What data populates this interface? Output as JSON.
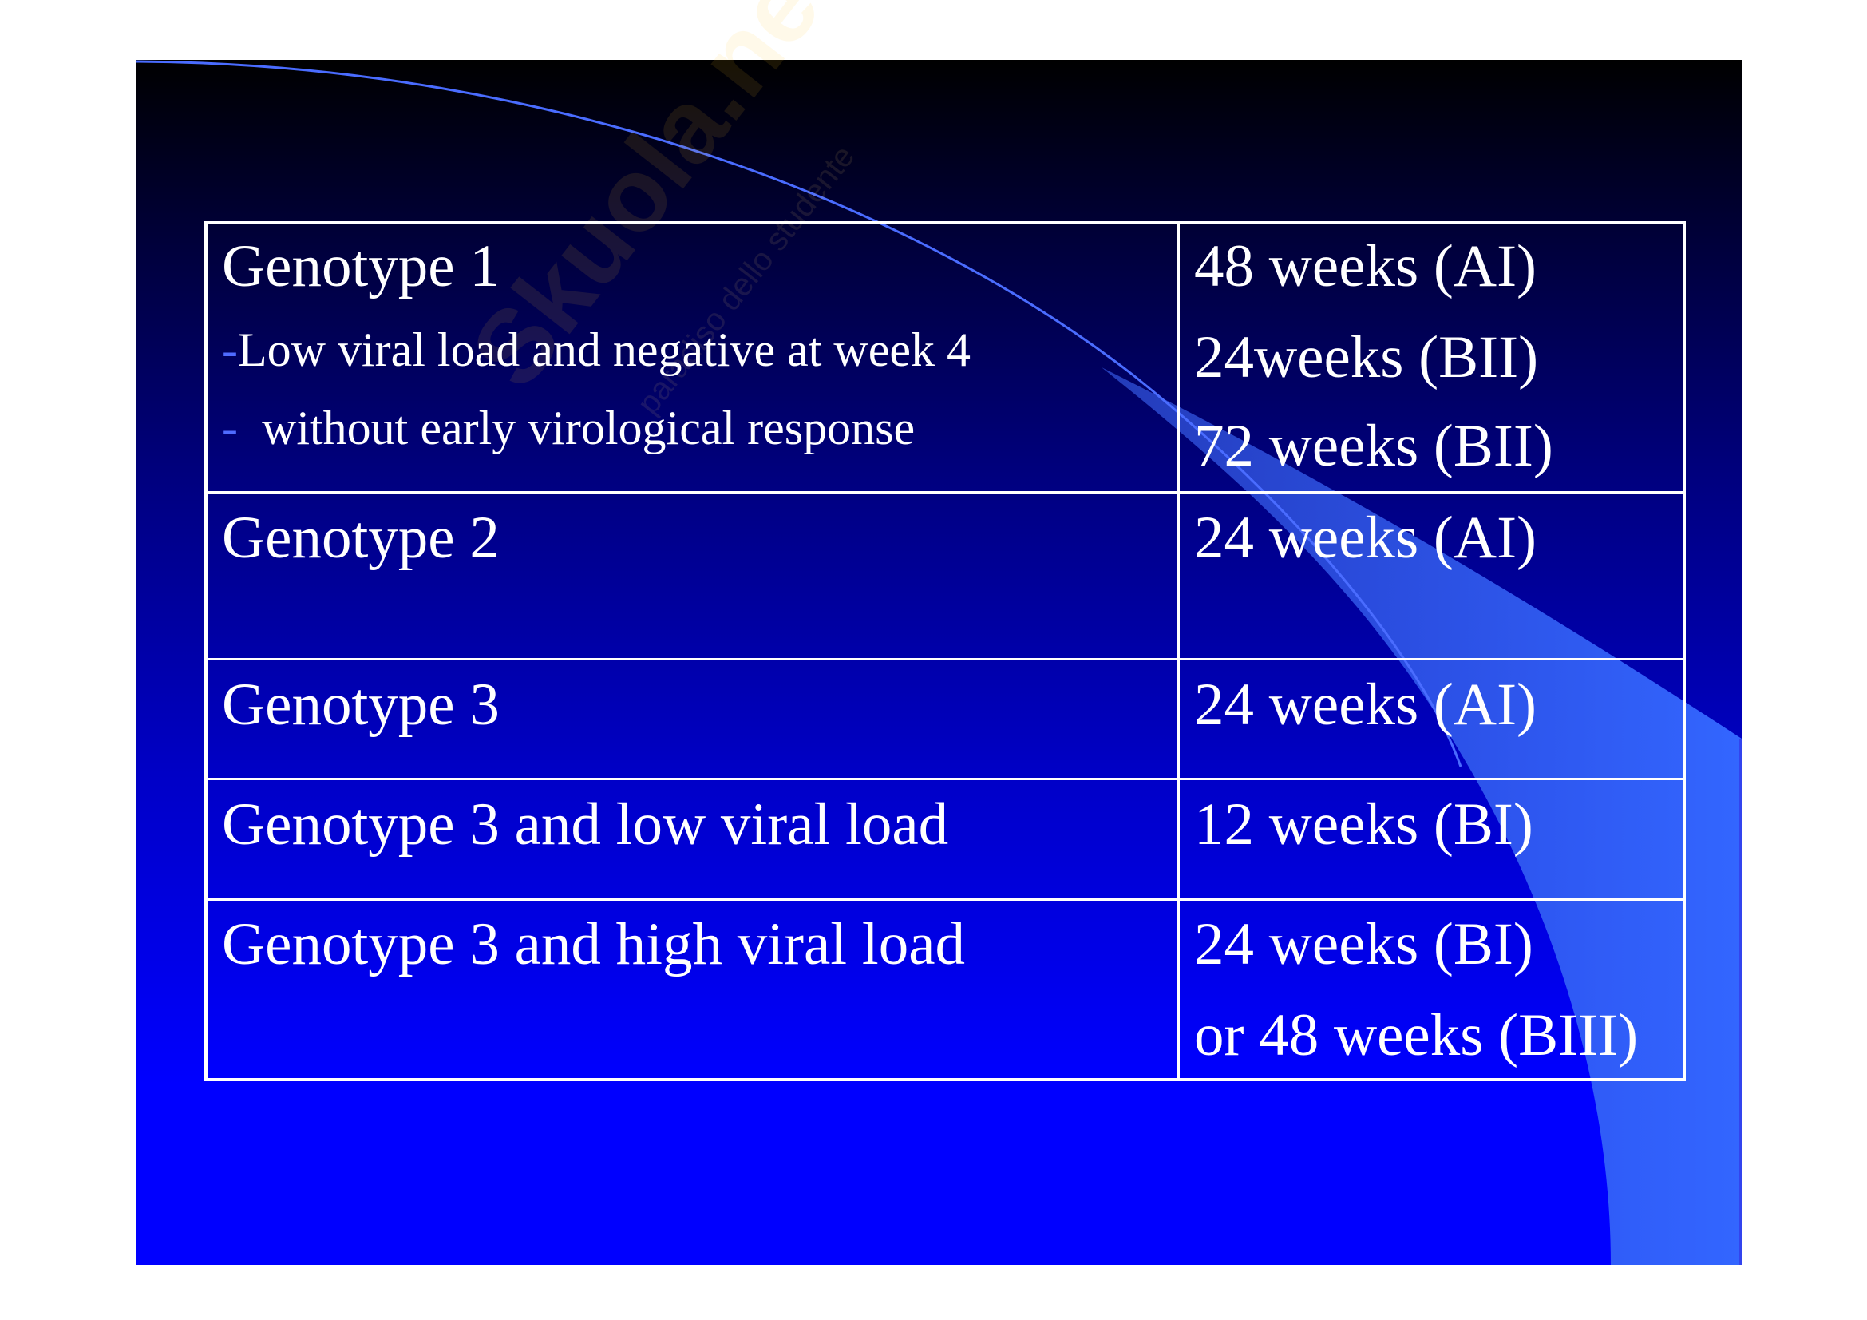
{
  "watermark": {
    "main": "Skuola.net",
    "tagline": "paradiso dello studente"
  },
  "colors": {
    "background_top": "#000000",
    "background_bottom": "#0000ff",
    "swoosh": "#3366ff",
    "table_border": "#ffffff",
    "text": "#ffffff"
  },
  "table": {
    "rows": [
      {
        "left": [
          "Genotype 1",
          "Low viral load and negative at week 4",
          "without early virological response"
        ],
        "right": [
          "48 weeks (AI)",
          "24weeks (BII)",
          "72 weeks (BII)"
        ]
      },
      {
        "left": [
          "Genotype 2"
        ],
        "right": [
          "24 weeks (AI)"
        ]
      },
      {
        "left": [
          "Genotype 3"
        ],
        "right": [
          "24 weeks (AI)"
        ]
      },
      {
        "left": [
          "Genotype 3 and low viral load"
        ],
        "right": [
          "12 weeks (BI)"
        ]
      },
      {
        "left": [
          "Genotype 3 and high viral load"
        ],
        "right": [
          "24 weeks (BI)",
          "or 48 weeks (BIII)"
        ]
      }
    ],
    "bullet": "-"
  }
}
